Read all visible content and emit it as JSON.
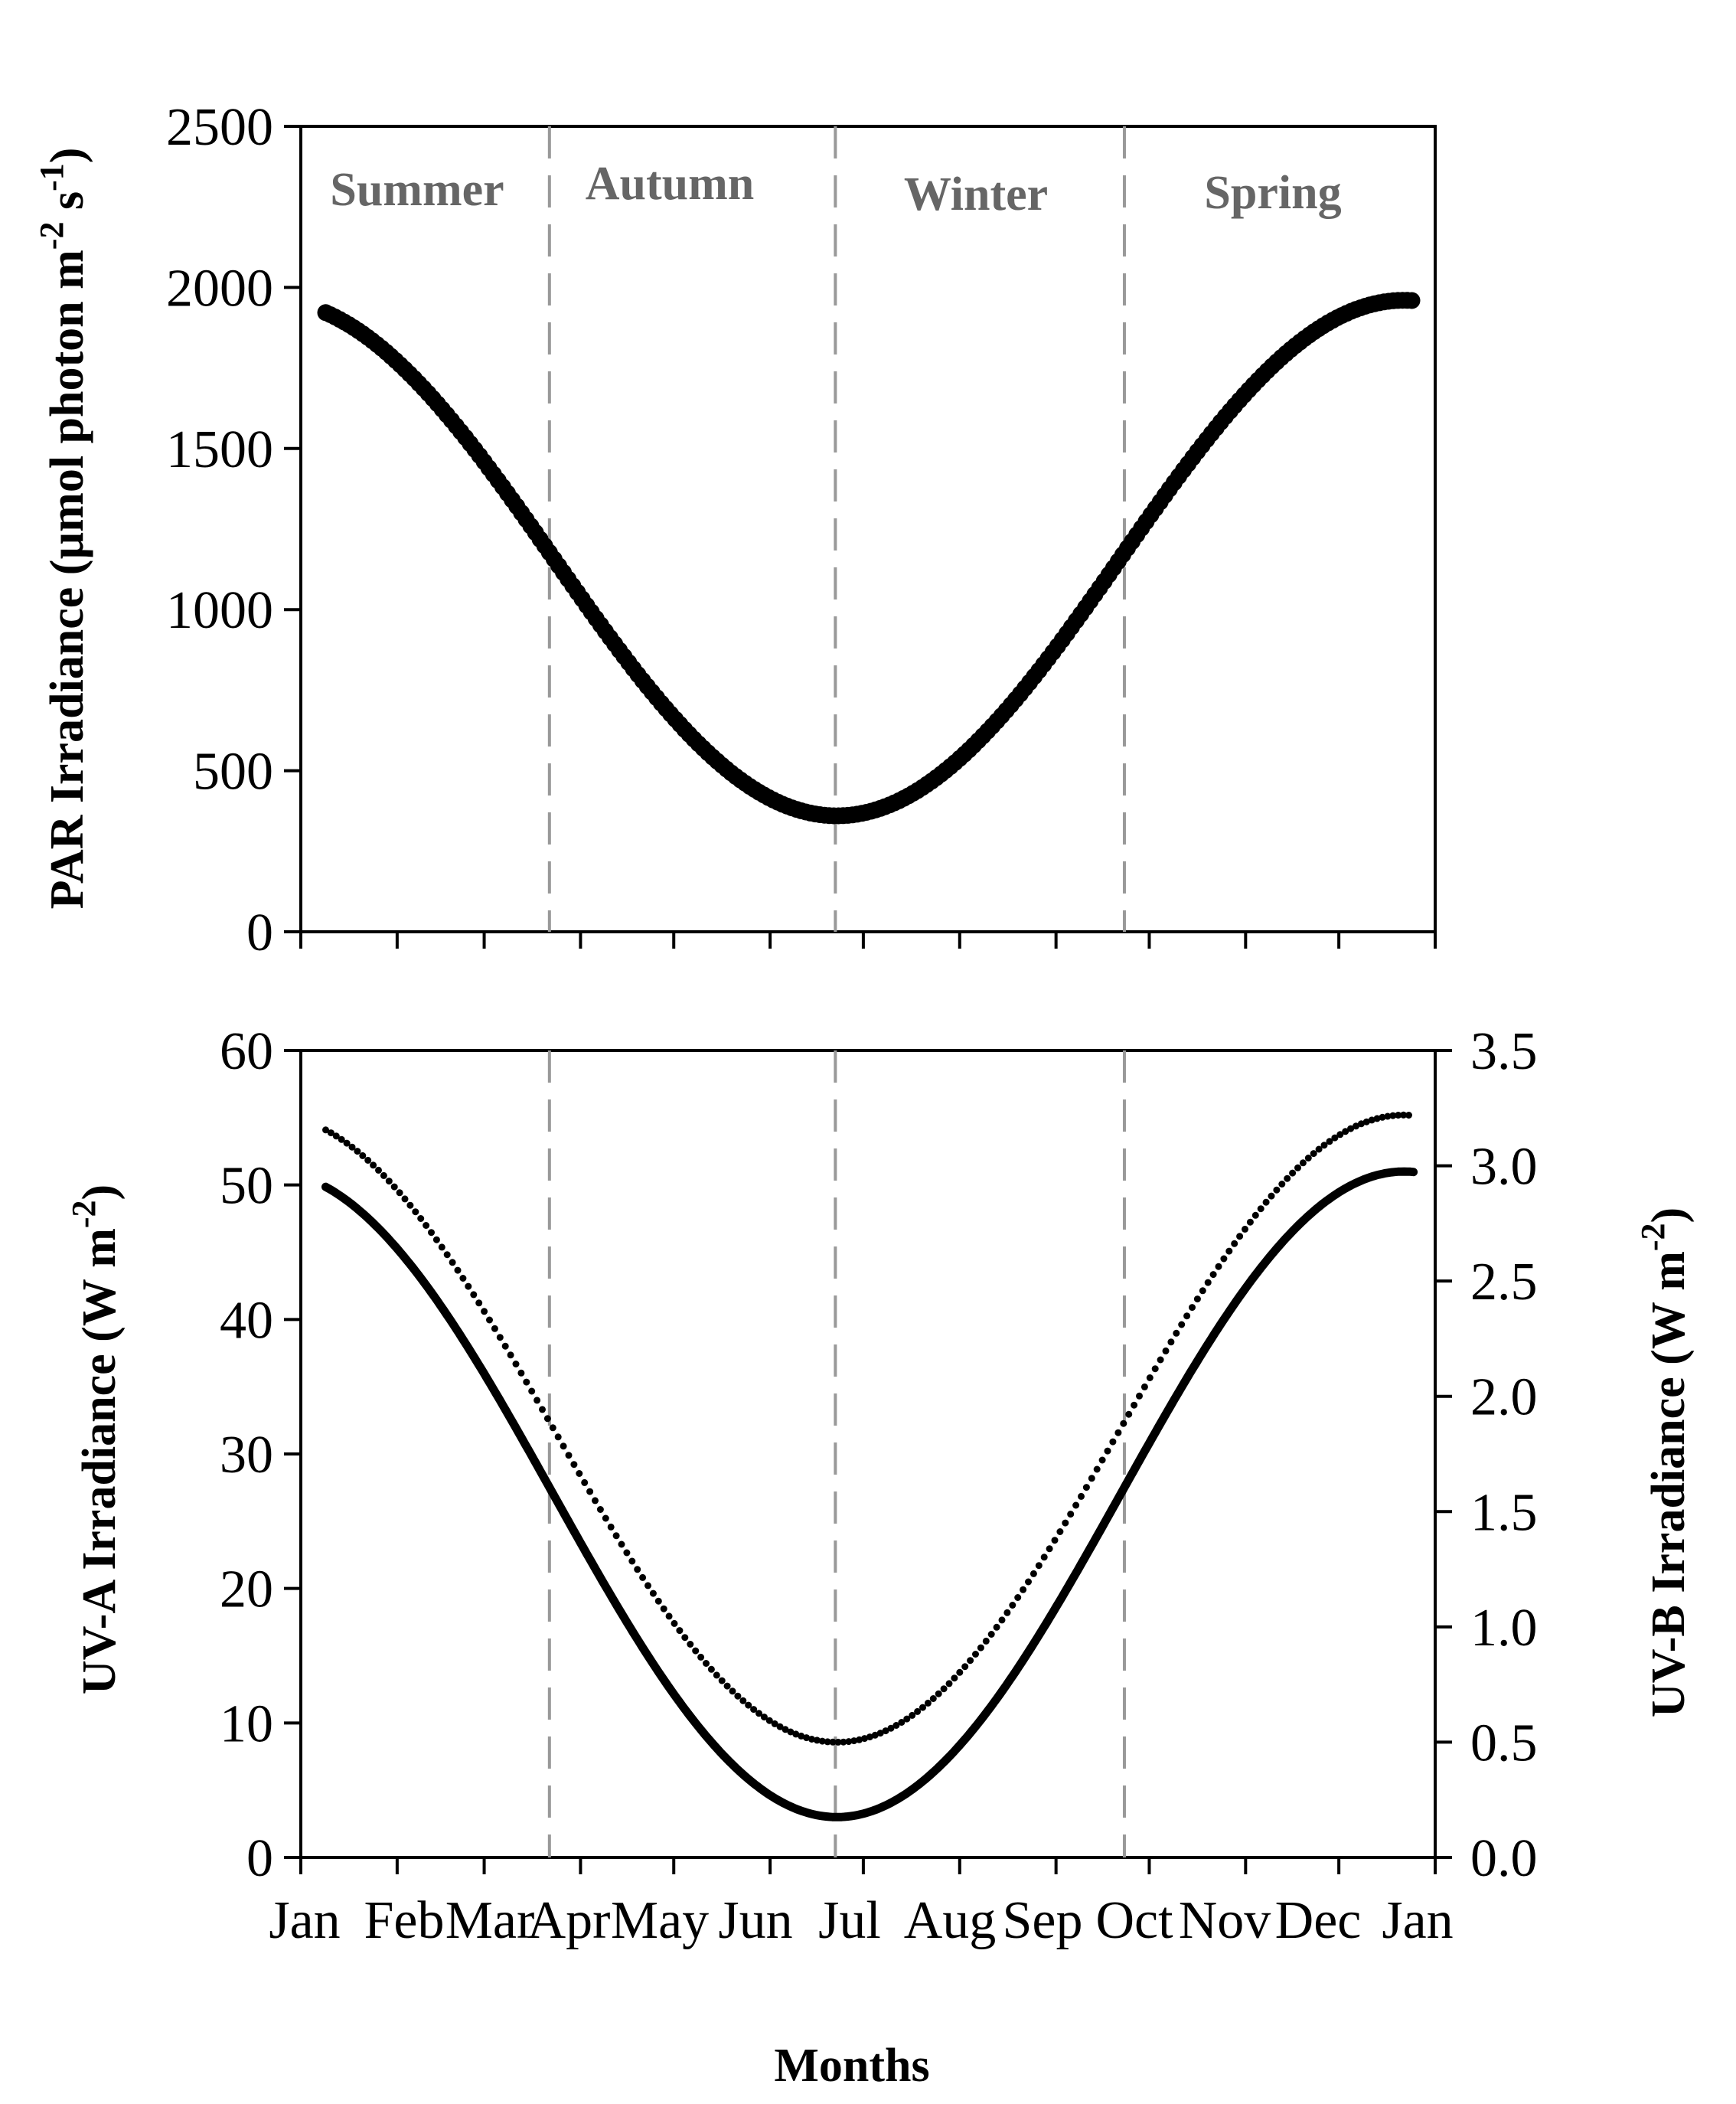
{
  "colors": {
    "axis": "#000000",
    "series": "#000000",
    "divider": "#999999",
    "season_text": "#666666"
  },
  "chart_data": [
    {
      "id": "par",
      "type": "scatter",
      "ylabel": {
        "main": "PAR Irradiance (µmol photon m",
        "sup1": "-2",
        "mid": " s",
        "sup2": "-1",
        "end": ")"
      },
      "ylim": [
        0,
        2500
      ],
      "yticks": [
        "0",
        "500",
        "1000",
        "1500",
        "2000",
        "2500"
      ],
      "seasons": [
        "Summer",
        "Autumn",
        "Winter",
        "Spring"
      ],
      "season_boundaries_day": [
        80,
        172,
        265
      ],
      "series": [
        {
          "name": "PAR",
          "style": "dots",
          "day_range": [
            8,
            358
          ],
          "model": "cosine",
          "peak_day": 355,
          "max": 1960,
          "min": 360
        }
      ]
    },
    {
      "id": "uv",
      "type": "line",
      "ylabel": {
        "main": "UV-A Irradiance (W m",
        "sup1": "-2",
        "end": ")"
      },
      "y2label": {
        "main": "UV-B Irradiance (W m",
        "sup1": "-2",
        "end": ")"
      },
      "ylim": [
        0,
        60
      ],
      "y2lim": [
        0,
        3.5
      ],
      "yticks": [
        "0",
        "10",
        "20",
        "30",
        "40",
        "50",
        "60"
      ],
      "y2ticks": [
        "0.0",
        "0.5",
        "1.0",
        "1.5",
        "2.0",
        "2.5",
        "3.0",
        "3.5"
      ],
      "season_boundaries_day": [
        80,
        172,
        265
      ],
      "series": [
        {
          "name": "UV-A",
          "axis": "left",
          "style": "solid",
          "day_range": [
            8,
            358
          ],
          "model": "cosine",
          "peak_day": 355,
          "max": 51,
          "min": 3
        },
        {
          "name": "UV-B",
          "axis": "right",
          "style": "dotted",
          "day_range": [
            8,
            358
          ],
          "model": "cosine",
          "peak_day": 355,
          "max": 3.22,
          "min": 0.5
        }
      ]
    }
  ],
  "x_axis": {
    "title": "Months",
    "months": [
      "Jan",
      "Feb",
      "Mar",
      "Apr",
      "May",
      "Jun",
      "Jul",
      "Aug",
      "Sep",
      "Oct",
      "Nov",
      "Dec",
      "Jan"
    ],
    "xlim_days": [
      0,
      365
    ]
  }
}
